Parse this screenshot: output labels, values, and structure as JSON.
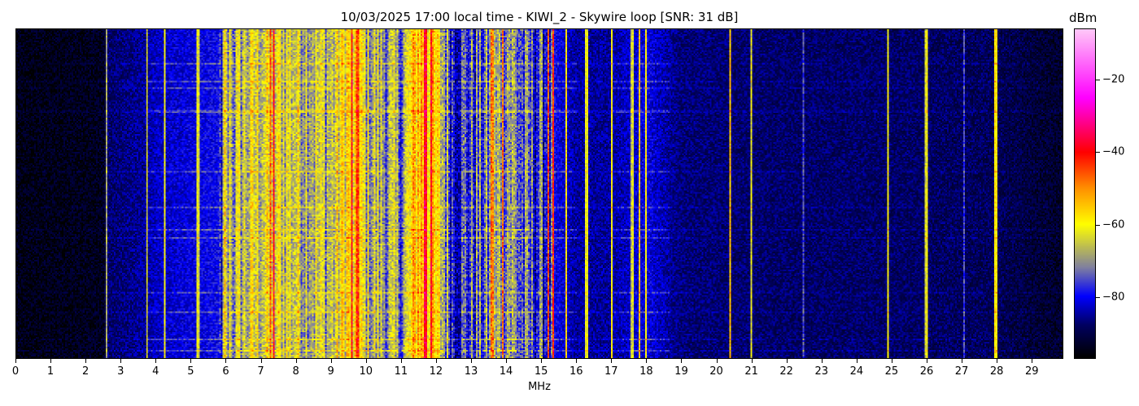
{
  "chart_data": {
    "type": "heatmap",
    "title": "10/03/2025 17:00 local time - KIWI_2 - Skywire loop [SNR: 31 dB]",
    "xlabel": "MHz",
    "xlim": [
      0,
      29.9
    ],
    "xticks": [
      "0",
      "1",
      "2",
      "3",
      "4",
      "5",
      "6",
      "7",
      "8",
      "9",
      "10",
      "11",
      "12",
      "13",
      "14",
      "15",
      "16",
      "17",
      "18",
      "19",
      "20",
      "21",
      "22",
      "23",
      "24",
      "25",
      "26",
      "27",
      "28",
      "29"
    ],
    "colorbar": {
      "label": "dBm",
      "range": [
        -97,
        -6
      ],
      "ticks": [
        "−20",
        "−40",
        "−60",
        "−80"
      ],
      "tick_values": [
        -20,
        -40,
        -60,
        -80
      ],
      "colormap": [
        [
          -97,
          "#000000"
        ],
        [
          -88,
          "#000060"
        ],
        [
          -80,
          "#0000ff"
        ],
        [
          -72,
          "#8080a0"
        ],
        [
          -60,
          "#ffff00"
        ],
        [
          -50,
          "#ff9000"
        ],
        [
          -40,
          "#ff0000"
        ],
        [
          -25,
          "#ff00ff"
        ],
        [
          -6,
          "#ffc8f8"
        ]
      ]
    },
    "noise_floor_profile_dbm": [
      [
        0,
        -95
      ],
      [
        2.5,
        -94
      ],
      [
        2.6,
        -88
      ],
      [
        3.7,
        -85
      ],
      [
        4,
        -83
      ],
      [
        5.8,
        -80
      ],
      [
        6,
        -70
      ],
      [
        7,
        -63
      ],
      [
        8,
        -64
      ],
      [
        9,
        -67
      ],
      [
        9.5,
        -57
      ],
      [
        10,
        -66
      ],
      [
        11,
        -72
      ],
      [
        11.5,
        -52
      ],
      [
        12,
        -60
      ],
      [
        12.5,
        -78
      ],
      [
        13.5,
        -74
      ],
      [
        14,
        -67
      ],
      [
        14.5,
        -76
      ],
      [
        15,
        -77
      ],
      [
        16,
        -85
      ],
      [
        17,
        -85
      ],
      [
        18,
        -81
      ],
      [
        19,
        -87
      ],
      [
        22,
        -88
      ],
      [
        25,
        -88
      ],
      [
        28,
        -89
      ],
      [
        29.9,
        -93
      ]
    ],
    "carriers_dbm": [
      [
        2.58,
        -70
      ],
      [
        3.75,
        -62
      ],
      [
        4.25,
        -62
      ],
      [
        5.2,
        -65
      ],
      [
        5.95,
        -58
      ],
      [
        6.1,
        -60
      ],
      [
        7.25,
        -45
      ],
      [
        7.35,
        -42
      ],
      [
        9.6,
        -42
      ],
      [
        9.75,
        -44
      ],
      [
        11.7,
        -38
      ],
      [
        11.85,
        -40
      ],
      [
        13.6,
        -50
      ],
      [
        13.9,
        -50
      ],
      [
        15.2,
        -48
      ],
      [
        15.35,
        -45
      ],
      [
        15.7,
        -58
      ],
      [
        16.3,
        -62
      ],
      [
        17.0,
        -62
      ],
      [
        17.6,
        -65
      ],
      [
        17.8,
        -55
      ],
      [
        18.0,
        -60
      ],
      [
        20.4,
        -55
      ],
      [
        21.0,
        -60
      ],
      [
        22.5,
        -78
      ],
      [
        24.9,
        -62
      ],
      [
        26.0,
        -62
      ],
      [
        27.1,
        -75
      ],
      [
        28.0,
        -60
      ]
    ]
  }
}
